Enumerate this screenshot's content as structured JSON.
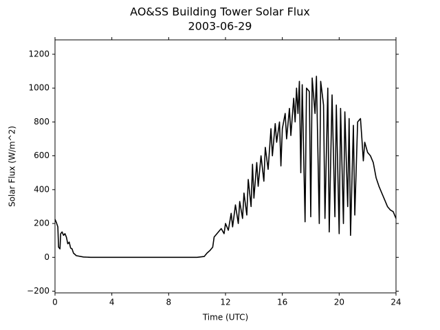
{
  "chart_data": {
    "type": "line",
    "title": "AO&SS Building Tower Solar Flux",
    "subtitle": "2003-06-29",
    "x_label": "Time (UTC)",
    "y_label": "Solar Flux (W/m^2)",
    "xlim": [
      0,
      24
    ],
    "xticks": [
      0,
      4,
      8,
      12,
      16,
      20,
      24
    ],
    "ylim": [
      -210,
      1285
    ],
    "yticks": [
      {
        "value": -200,
        "label": "−200"
      },
      0,
      200,
      400,
      600,
      800,
      1000,
      1200
    ],
    "grid": false,
    "series": [
      {
        "color": "#000000",
        "x": [
          0,
          0.1,
          0.2,
          0.25,
          0.35,
          0.4,
          0.5,
          0.6,
          0.7,
          0.8,
          0.9,
          1.0,
          1.1,
          1.2,
          1.3,
          1.5,
          2.0,
          2.5,
          4,
          8,
          10,
          10.5,
          10.7,
          10.9,
          11.1,
          11.2,
          11.5,
          11.7,
          11.9,
          12.0,
          12.2,
          12.4,
          12.5,
          12.7,
          12.9,
          13.0,
          13.2,
          13.3,
          13.5,
          13.6,
          13.8,
          13.9,
          14.0,
          14.2,
          14.3,
          14.5,
          14.7,
          14.8,
          15.0,
          15.2,
          15.3,
          15.5,
          15.6,
          15.8,
          15.9,
          16.0,
          16.2,
          16.3,
          16.5,
          16.6,
          16.8,
          16.9,
          17.0,
          17.1,
          17.2,
          17.3,
          17.4,
          17.6,
          17.7,
          17.9,
          18.0,
          18.1,
          18.3,
          18.4,
          18.6,
          18.7,
          18.9,
          19.0,
          19.2,
          19.3,
          19.5,
          19.7,
          19.8,
          20.0,
          20.1,
          20.3,
          20.4,
          20.6,
          20.7,
          20.8,
          21.0,
          21.1,
          21.3,
          21.5,
          21.6,
          21.7,
          21.8,
          22.0,
          22.2,
          22.4,
          22.6,
          22.8,
          23.0,
          23.2,
          23.4,
          23.6,
          23.8,
          24
        ],
        "values": [
          225,
          205,
          180,
          60,
          50,
          140,
          150,
          130,
          140,
          120,
          80,
          90,
          55,
          50,
          25,
          10,
          2,
          0,
          0,
          0,
          0,
          5,
          25,
          40,
          60,
          120,
          150,
          170,
          140,
          200,
          160,
          260,
          180,
          310,
          200,
          330,
          230,
          380,
          250,
          460,
          300,
          550,
          350,
          560,
          420,
          600,
          450,
          650,
          520,
          760,
          600,
          790,
          680,
          800,
          540,
          760,
          850,
          700,
          880,
          720,
          940,
          800,
          1000,
          850,
          1040,
          500,
          1020,
          210,
          1000,
          980,
          240,
          1060,
          850,
          1070,
          200,
          1040,
          900,
          230,
          1000,
          150,
          960,
          240,
          900,
          140,
          880,
          200,
          860,
          300,
          820,
          130,
          780,
          250,
          800,
          820,
          700,
          570,
          680,
          620,
          600,
          560,
          470,
          420,
          380,
          340,
          300,
          280,
          270,
          230
        ]
      }
    ]
  }
}
